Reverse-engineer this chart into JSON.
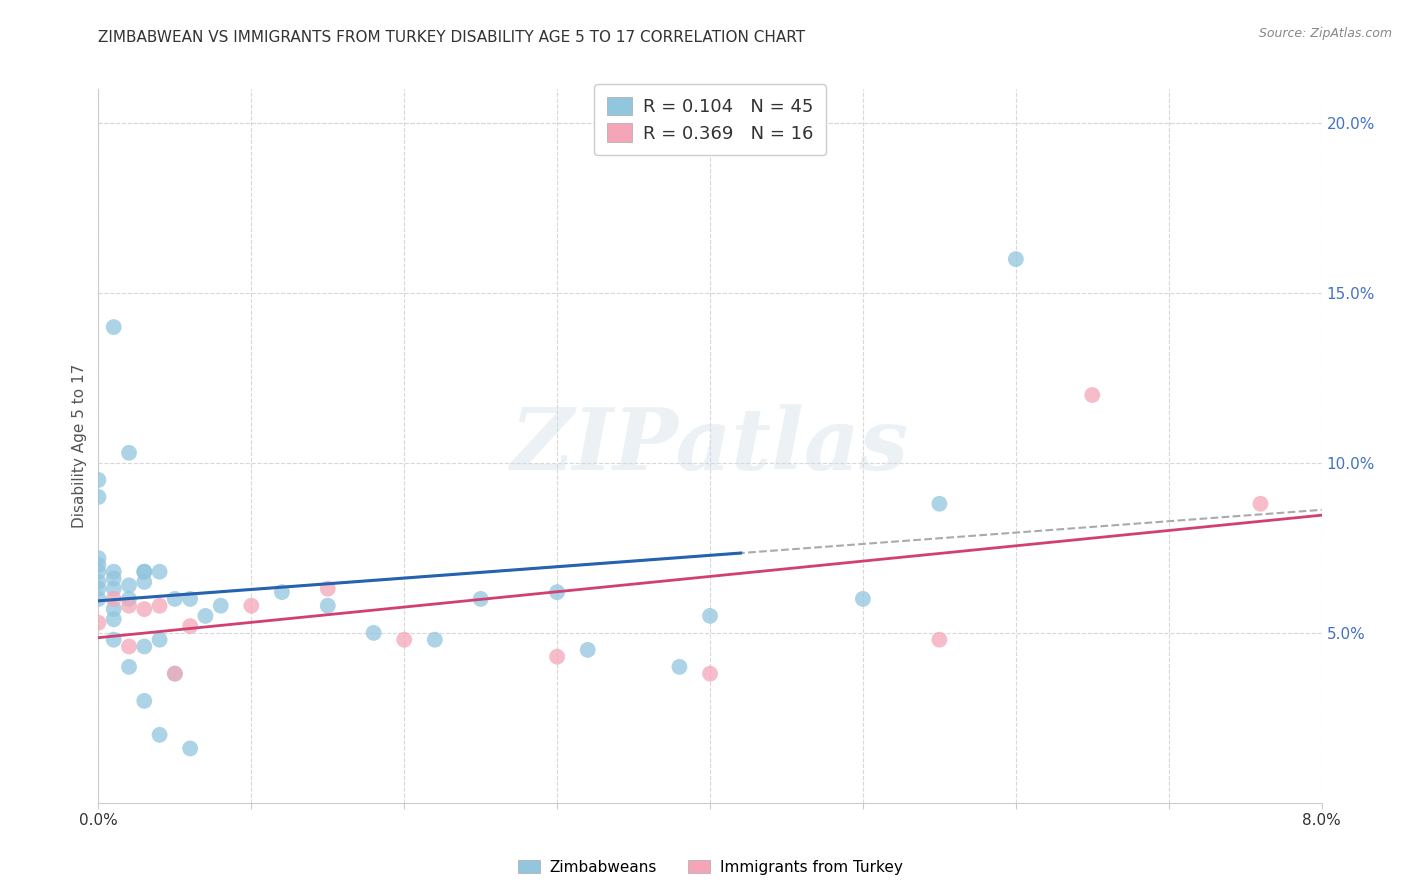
{
  "title": "ZIMBABWEAN VS IMMIGRANTS FROM TURKEY DISABILITY AGE 5 TO 17 CORRELATION CHART",
  "source": "Source: ZipAtlas.com",
  "ylabel": "Disability Age 5 to 17",
  "legend_zim": "Zimbabweans",
  "legend_turk": "Immigrants from Turkey",
  "R_zim": 0.104,
  "N_zim": 45,
  "R_turk": 0.369,
  "N_turk": 16,
  "color_zim": "#92c5de",
  "color_turk": "#f4a6b8",
  "trendline_zim_color": "#2563b0",
  "trendline_turk_color": "#d04070",
  "trendline_dashed_color": "#aaaaaa",
  "right_axis_color": "#4472c4",
  "watermark": "ZIPatlas",
  "xmin": 0.0,
  "xmax": 0.08,
  "ymin": 0.0,
  "ymax": 0.21,
  "right_ytick_vals": [
    0.05,
    0.1,
    0.15,
    0.2
  ],
  "right_ytick_labels": [
    "5.0%",
    "10.0%",
    "15.0%",
    "20.0%"
  ],
  "xtick_vals": [
    0.0,
    0.01,
    0.02,
    0.03,
    0.04,
    0.05,
    0.06,
    0.07,
    0.08
  ],
  "xtick_show_labels": [
    true,
    false,
    false,
    false,
    false,
    false,
    false,
    false,
    true
  ],
  "xtick_labels": [
    "0.0%",
    "",
    "",
    "",
    "",
    "",
    "",
    "",
    "8.0%"
  ],
  "background_color": "#ffffff",
  "grid_color": "#d8d8d8",
  "zim_x": [
    0.0,
    0.0,
    0.0,
    0.0,
    0.0,
    0.0,
    0.0,
    0.0,
    0.001,
    0.001,
    0.001,
    0.001,
    0.001,
    0.001,
    0.001,
    0.002,
    0.002,
    0.002,
    0.002,
    0.003,
    0.003,
    0.003,
    0.003,
    0.003,
    0.004,
    0.004,
    0.004,
    0.005,
    0.005,
    0.006,
    0.006,
    0.007,
    0.008,
    0.012,
    0.015,
    0.018,
    0.022,
    0.025,
    0.03,
    0.032,
    0.038,
    0.04,
    0.05,
    0.055,
    0.06
  ],
  "zim_y": [
    0.072,
    0.07,
    0.068,
    0.065,
    0.063,
    0.06,
    0.09,
    0.095,
    0.068,
    0.066,
    0.063,
    0.057,
    0.054,
    0.048,
    0.14,
    0.103,
    0.064,
    0.06,
    0.04,
    0.068,
    0.068,
    0.065,
    0.046,
    0.03,
    0.068,
    0.048,
    0.02,
    0.06,
    0.038,
    0.06,
    0.016,
    0.055,
    0.058,
    0.062,
    0.058,
    0.05,
    0.048,
    0.06,
    0.062,
    0.045,
    0.04,
    0.055,
    0.06,
    0.088,
    0.16
  ],
  "turk_x": [
    0.0,
    0.001,
    0.002,
    0.002,
    0.003,
    0.004,
    0.005,
    0.006,
    0.01,
    0.015,
    0.02,
    0.03,
    0.04,
    0.055,
    0.065,
    0.076
  ],
  "turk_y": [
    0.053,
    0.06,
    0.058,
    0.046,
    0.057,
    0.058,
    0.038,
    0.052,
    0.058,
    0.063,
    0.048,
    0.043,
    0.038,
    0.048,
    0.12,
    0.088
  ]
}
